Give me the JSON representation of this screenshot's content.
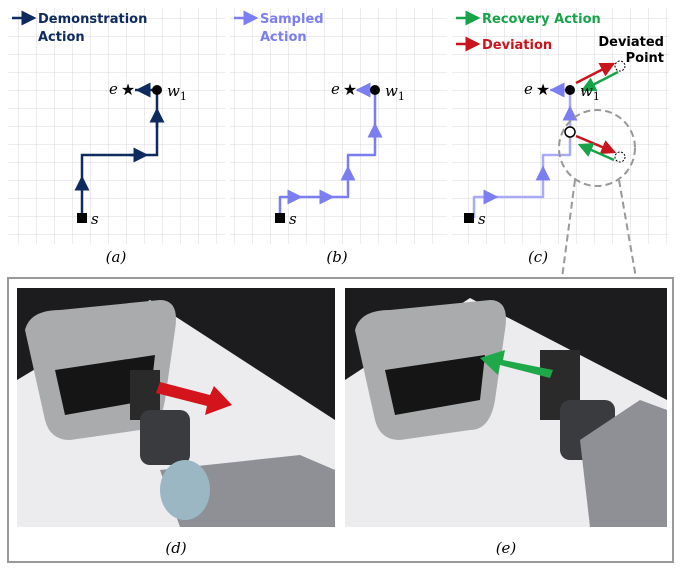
{
  "panel_a": {
    "legend": [
      "Demonstration",
      "Action"
    ],
    "start": "s",
    "end": "e",
    "waypoint": {
      "base": "w",
      "sub": "1"
    },
    "caption": "(a)"
  },
  "panel_b": {
    "legend": [
      "Sampled",
      "Action"
    ],
    "start": "s",
    "end": "e",
    "waypoint": {
      "base": "w",
      "sub": "1"
    },
    "caption": "(b)"
  },
  "panel_c": {
    "legend": [
      "Recovery Action",
      "Deviation"
    ],
    "deviated": [
      "Deviated",
      "Point"
    ],
    "start": "s",
    "end": "e",
    "waypoint": {
      "base": "w",
      "sub": "1"
    },
    "caption": "(c)"
  },
  "photos": [
    {
      "caption": "(d)"
    },
    {
      "caption": "(e)"
    }
  ]
}
